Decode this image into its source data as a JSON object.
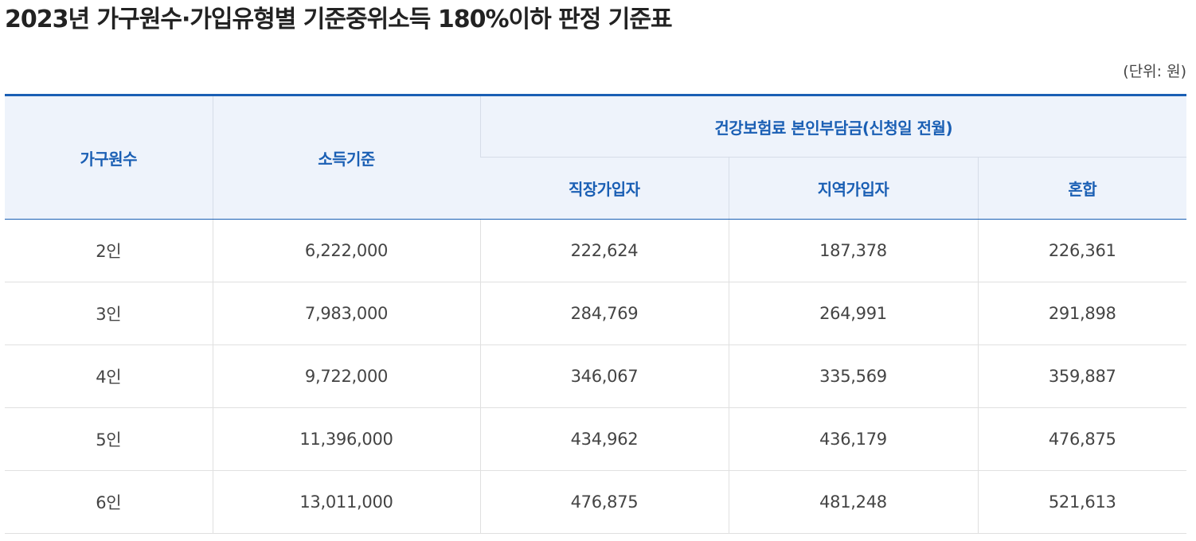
{
  "title": "2023년 가구원수·가입유형별 기준중위소득 180%이하 판정 기준표",
  "unit": "(단위: 원)",
  "table": {
    "headers": {
      "household": "가구원수",
      "income": "소득기준",
      "premium_group": "건강보험료 본인부담금(신청일 전월)",
      "employee": "직장가입자",
      "regional": "지역가입자",
      "mixed": "혼합"
    },
    "rows": [
      {
        "household": "2인",
        "income": "6,222,000",
        "employee": "222,624",
        "regional": "187,378",
        "mixed": "226,361"
      },
      {
        "household": "3인",
        "income": "7,983,000",
        "employee": "284,769",
        "regional": "264,991",
        "mixed": "291,898"
      },
      {
        "household": "4인",
        "income": "9,722,000",
        "employee": "346,067",
        "regional": "335,569",
        "mixed": "359,887"
      },
      {
        "household": "5인",
        "income": "11,396,000",
        "employee": "434,962",
        "regional": "436,179",
        "mixed": "476,875"
      },
      {
        "household": "6인",
        "income": "13,011,000",
        "employee": "476,875",
        "regional": "481,248",
        "mixed": "521,613"
      }
    ]
  },
  "colors": {
    "accent": "#1a5fb4",
    "header_bg": "#eef3fb"
  }
}
